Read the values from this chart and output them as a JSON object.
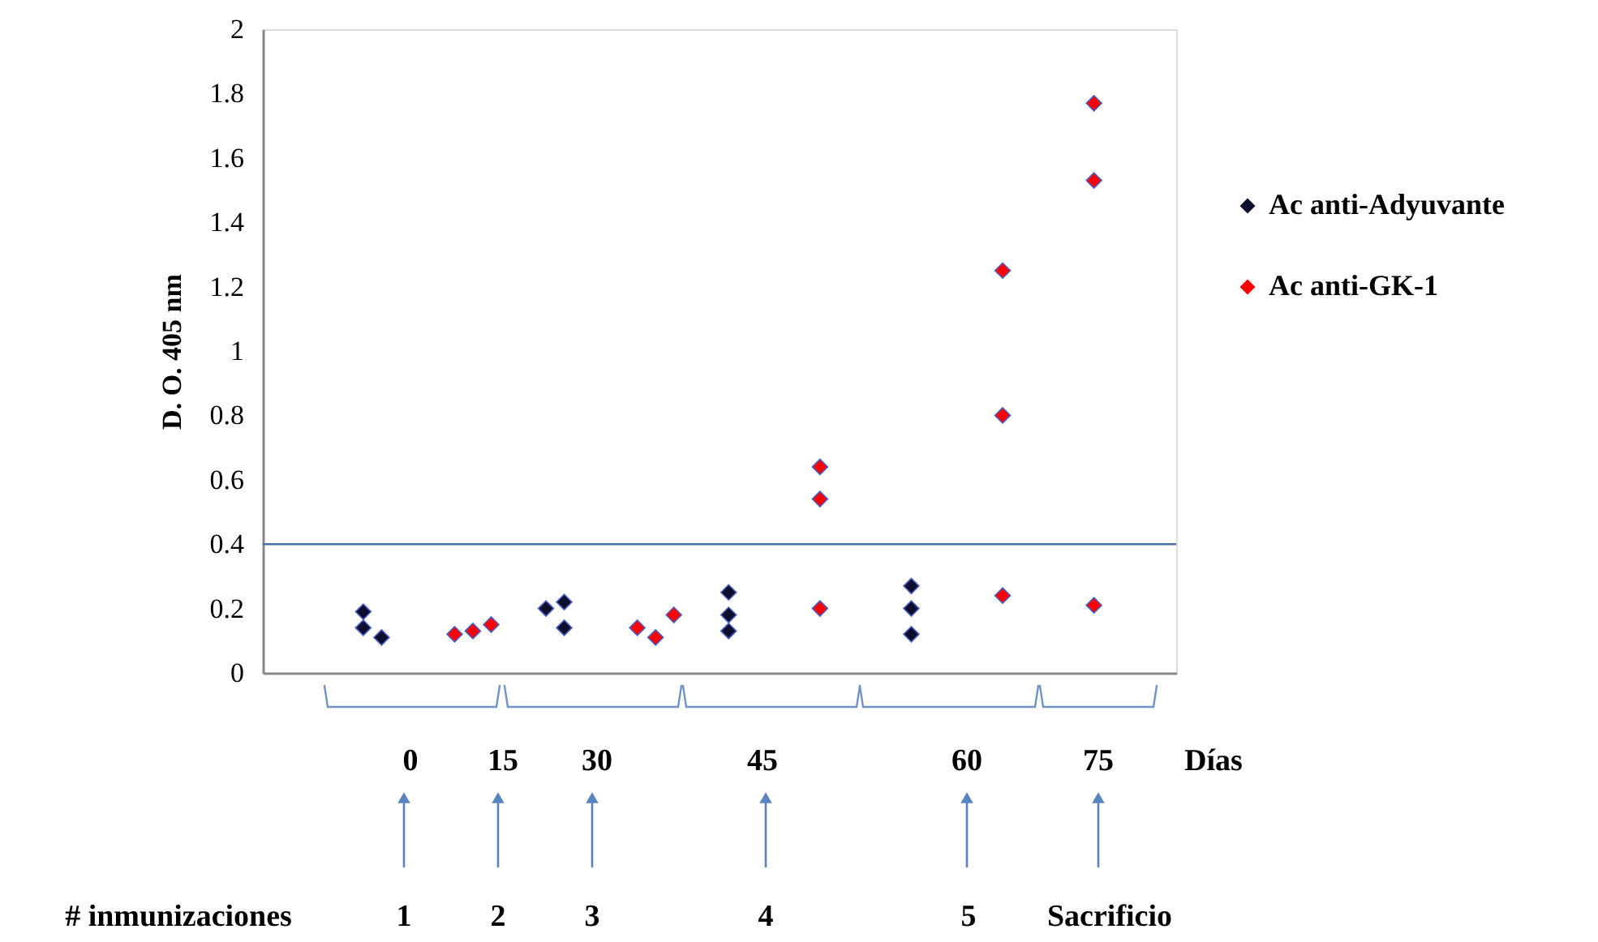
{
  "chart_data": {
    "type": "scatter",
    "ylabel": "D. O. 405 nm",
    "categories": [
      null,
      null,
      null,
      null,
      null,
      null,
      null,
      null,
      null,
      null,
      null,
      null,
      null,
      null,
      null,
      null,
      null,
      null,
      null,
      null,
      null,
      null,
      null,
      null,
      null,
      null,
      null,
      null,
      null,
      null,
      null,
      null,
      null,
      null,
      null,
      null,
      null,
      null,
      null,
      null,
      null,
      null,
      null,
      null,
      null,
      null,
      null,
      null,
      null,
      null
    ],
    "ylim": [
      0,
      2
    ],
    "yticks": [
      0,
      0.2,
      0.4,
      0.6,
      0.8,
      1,
      1.2,
      1.4,
      1.6,
      1.8,
      2
    ],
    "tick_labels": "y",
    "grid": false,
    "legend": "right",
    "marker": "diamond",
    "series": [
      {
        "name": "Ac anti-Adyuvante",
        "color": "#0d0d2e",
        "values": [
          null,
          null,
          null,
          null,
          null,
          0.19,
          0.11,
          null,
          null,
          null,
          null,
          null,
          null,
          null,
          null,
          0.2,
          0.22,
          null,
          null,
          null,
          null,
          null,
          null,
          null,
          null,
          0.25,
          null,
          null,
          null,
          null,
          null,
          null,
          null,
          null,
          null,
          0.27,
          null,
          null,
          null,
          null,
          null,
          null,
          null,
          null,
          null,
          null,
          null,
          null,
          null,
          null
        ]
      },
      {
        "color": "#0d0d2e",
        "values": [
          null,
          null,
          null,
          null,
          null,
          0.14,
          null,
          null,
          null,
          null,
          null,
          null,
          null,
          null,
          null,
          null,
          0.14,
          null,
          null,
          null,
          null,
          null,
          null,
          null,
          null,
          0.18,
          null,
          null,
          null,
          null,
          null,
          null,
          null,
          null,
          null,
          0.2,
          null,
          null,
          null,
          null,
          null,
          null,
          null,
          null,
          null,
          null,
          null,
          null,
          null,
          null
        ]
      },
      {
        "color": "#0d0d2e",
        "values": [
          null,
          null,
          null,
          null,
          null,
          null,
          null,
          null,
          null,
          null,
          null,
          null,
          null,
          null,
          null,
          null,
          null,
          null,
          null,
          null,
          null,
          null,
          null,
          null,
          null,
          0.13,
          null,
          null,
          null,
          null,
          null,
          null,
          null,
          null,
          null,
          0.12,
          null,
          null,
          null,
          null,
          null,
          null,
          null,
          null,
          null,
          null,
          null,
          null,
          null,
          null
        ]
      },
      {
        "name": "Ac anti-GK-1",
        "color": "#ff0000",
        "values": [
          null,
          null,
          null,
          null,
          null,
          null,
          null,
          null,
          null,
          null,
          0.12,
          0.13,
          0.15,
          null,
          null,
          null,
          null,
          null,
          null,
          null,
          0.14,
          0.11,
          0.18,
          null,
          null,
          null,
          null,
          null,
          null,
          null,
          0.2,
          null,
          null,
          null,
          null,
          null,
          null,
          null,
          null,
          null,
          0.24,
          null,
          null,
          null,
          null,
          0.21,
          null,
          null,
          null,
          null
        ]
      },
      {
        "color": "#ff0000",
        "values": [
          null,
          null,
          null,
          null,
          null,
          null,
          null,
          null,
          null,
          null,
          null,
          null,
          null,
          null,
          null,
          null,
          null,
          null,
          null,
          null,
          null,
          null,
          null,
          null,
          null,
          null,
          null,
          null,
          null,
          null,
          0.54,
          null,
          null,
          null,
          null,
          null,
          null,
          null,
          null,
          null,
          0.8,
          null,
          null,
          null,
          null,
          1.53,
          null,
          null,
          null,
          null
        ]
      },
      {
        "color": "#ff0000",
        "values": [
          null,
          null,
          null,
          null,
          null,
          null,
          null,
          null,
          null,
          null,
          null,
          null,
          null,
          null,
          null,
          null,
          null,
          null,
          null,
          null,
          null,
          null,
          null,
          null,
          null,
          null,
          null,
          null,
          null,
          null,
          0.64,
          null,
          null,
          null,
          null,
          null,
          null,
          null,
          null,
          null,
          1.25,
          null,
          null,
          null,
          null,
          1.77,
          null,
          null,
          null,
          null
        ]
      }
    ],
    "ref_lines": [
      {
        "axis": "y",
        "value": 0.4,
        "color": "#4a6ea8"
      }
    ],
    "annotations": [
      "0",
      "15",
      "30",
      "45",
      "60",
      "75",
      "Días",
      "# inmunizaciones",
      "1",
      "2",
      "3",
      "4",
      "5",
      "Sacrificio"
    ]
  }
}
